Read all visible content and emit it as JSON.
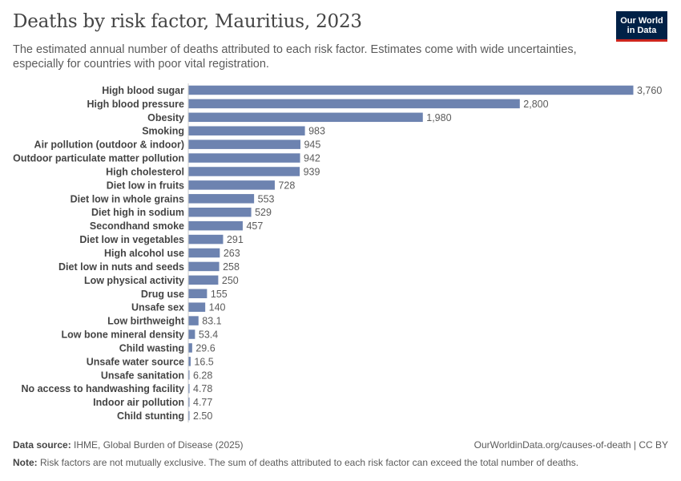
{
  "header": {
    "title": "Deaths by risk factor, Mauritius, 2023",
    "subtitle": "The estimated annual number of deaths attributed to each risk factor. Estimates come with wide uncertainties, especially for countries with poor vital registration.",
    "logo_line1": "Our World",
    "logo_line2": "in Data"
  },
  "footer": {
    "source_label": "Data source:",
    "source_text": "IHME, Global Burden of Disease (2025)",
    "url": "OurWorldinData.org/causes-of-death | CC BY",
    "note_label": "Note:",
    "note_text": "Risk factors are not mutually exclusive. The sum of deaths attributed to each risk factor can exceed the total number of deaths."
  },
  "colors": {
    "bar": "#6d83b0",
    "axis": "#cccccc",
    "brand": "#002147",
    "brand_accent": "#ce261e"
  },
  "chart_data": {
    "type": "bar",
    "orientation": "horizontal",
    "categories": [
      "High blood sugar",
      "High blood pressure",
      "Obesity",
      "Smoking",
      "Air pollution (outdoor & indoor)",
      "Outdoor particulate matter pollution",
      "High cholesterol",
      "Diet low in fruits",
      "Diet low in whole grains",
      "Diet high in sodium",
      "Secondhand smoke",
      "Diet low in vegetables",
      "High alcohol use",
      "Diet low in nuts and seeds",
      "Low physical activity",
      "Drug use",
      "Unsafe sex",
      "Low birthweight",
      "Low bone mineral density",
      "Child wasting",
      "Unsafe water source",
      "Unsafe sanitation",
      "No access to handwashing facility",
      "Indoor air pollution",
      "Child stunting"
    ],
    "values": [
      3760,
      2800,
      1980,
      983,
      945,
      942,
      939,
      728,
      553,
      529,
      457,
      291,
      263,
      258,
      250,
      155,
      140,
      83.1,
      53.4,
      29.6,
      16.5,
      6.28,
      4.78,
      4.77,
      2.5
    ],
    "value_labels": [
      "3,760",
      "2,800",
      "1,980",
      "983",
      "945",
      "942",
      "939",
      "728",
      "553",
      "529",
      "457",
      "291",
      "263",
      "258",
      "250",
      "155",
      "140",
      "83.1",
      "53.4",
      "29.6",
      "16.5",
      "6.28",
      "4.78",
      "4.77",
      "2.50"
    ],
    "xlim": [
      0,
      3760
    ]
  }
}
